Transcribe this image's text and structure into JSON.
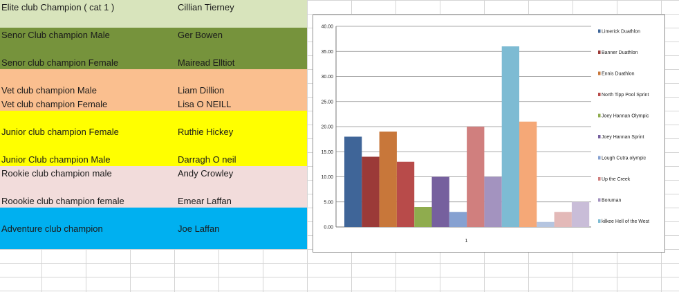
{
  "sheet": {
    "rows": [
      {
        "label": "Elite club Champion ( cat 1 )",
        "value": "Cillian Tierney",
        "bg": "#d8e4bc"
      },
      {
        "label": "Senor Club champion Male",
        "value": "Ger Bowen",
        "bg": "#76933c"
      },
      {
        "label": "Senor club champion Female",
        "value": "Mairead Elltiot",
        "bg": "#76933c"
      },
      {
        "label": "Vet club champion Male",
        "value": "Liam Dillion",
        "bg": "#fabf8f"
      },
      {
        "label": "Vet club champion Female",
        "value": "Lisa O NEILL",
        "bg": "#fabf8f"
      },
      {
        "label": "Junior club champion Female",
        "value": "Ruthie Hickey",
        "bg": "#ffff00"
      },
      {
        "label": "Junior Club champion Male",
        "value": "Darragh O neil",
        "bg": "#ffff00"
      },
      {
        "label": "Rookie club champion male",
        "value": "Andy Crowley",
        "bg": "#f2dcdb"
      },
      {
        "label": "Roookie club champion female",
        "value": "Emear Laffan",
        "bg": "#f2dcdb"
      },
      {
        "label": "Adventure club champion",
        "value": "Joe Laffan",
        "bg": "#00b0f0"
      }
    ]
  },
  "chart_data": {
    "type": "bar",
    "categories": [
      "1"
    ],
    "ylim": [
      0,
      40
    ],
    "yticks": [
      "0.00",
      "5.00",
      "10.00",
      "15.00",
      "20.00",
      "25.00",
      "30.00",
      "35.00",
      "40.00"
    ],
    "grid": true,
    "legend_position": "right",
    "series": [
      {
        "name": "Limerick Duathlon",
        "values": [
          18
        ],
        "color": "#3f6598"
      },
      {
        "name": "Banner Duathlon",
        "values": [
          14
        ],
        "color": "#9b3a38"
      },
      {
        "name": "Ennis Duathlon",
        "values": [
          19
        ],
        "color": "#c8773a"
      },
      {
        "name": "North Tipp Pool Sprint",
        "values": [
          13
        ],
        "color": "#b84b4a"
      },
      {
        "name": "Joey Hannan Olympic",
        "values": [
          4
        ],
        "color": "#8fac4e"
      },
      {
        "name": "Joey Hannan Sprint",
        "values": [
          10
        ],
        "color": "#76609e"
      },
      {
        "name": "Lough Cutra olympic",
        "values": [
          3
        ],
        "color": "#86a1d1"
      },
      {
        "name": "Up the Creek",
        "values": [
          20
        ],
        "color": "#d07f7e"
      },
      {
        "name": "Boruman",
        "values": [
          10
        ],
        "color": "#a393bf"
      },
      {
        "name": "kilkee Hell of the West",
        "values": [
          36
        ],
        "color": "#7dbbd3"
      },
      {
        "name": "",
        "values": [
          21
        ],
        "color": "#f5a877"
      },
      {
        "name": "",
        "values": [
          1
        ],
        "color": "#b5c5e0"
      },
      {
        "name": "",
        "values": [
          3
        ],
        "color": "#e3b9b8"
      },
      {
        "name": "",
        "values": [
          5
        ],
        "color": "#c9bdd8"
      }
    ]
  }
}
